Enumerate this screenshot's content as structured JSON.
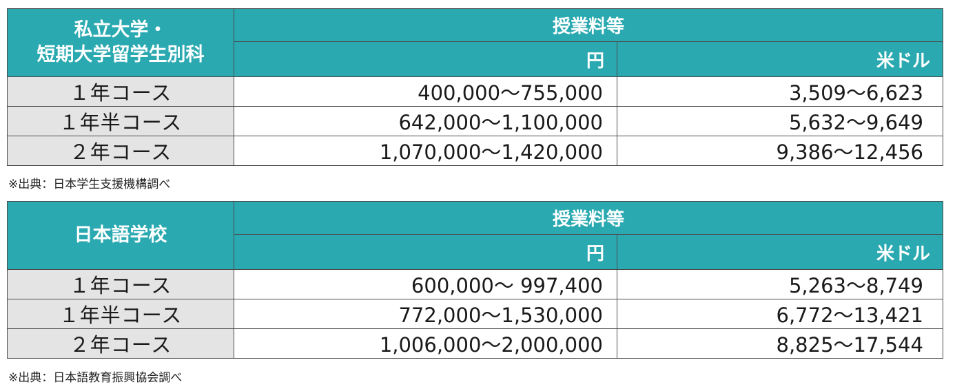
{
  "tables": [
    {
      "name_line1": "私立大学・",
      "name_line2": "短期大学留学生別科",
      "group_header": "授業料等",
      "unit_yen": "円",
      "unit_usd": "米ドル",
      "rows": [
        {
          "course": "１年コース",
          "yen": "400,000～755,000",
          "usd": "3,509～6,623"
        },
        {
          "course": "１年半コース",
          "yen": "642,000～1,100,000",
          "usd": "5,632～9,649"
        },
        {
          "course": "２年コース",
          "yen": "1,070,000～1,420,000",
          "usd": "9,386～12,456"
        }
      ],
      "note": "※出典：日本学生支援機構調べ"
    },
    {
      "name_line1": "日本語学校",
      "group_header": "授業料等",
      "unit_yen": "円",
      "unit_usd": "米ドル",
      "rows": [
        {
          "course": "１年コース",
          "yen": "600,000～ 997,400",
          "usd": "5,263～8,749"
        },
        {
          "course": "１年半コース",
          "yen": "772,000～1,530,000",
          "usd": "6,772～13,421"
        },
        {
          "course": "２年コース",
          "yen": "1,006,000～2,000,000",
          "usd": "8,825～17,544"
        }
      ],
      "note": "※出典：日本語教育振興協会調べ"
    }
  ]
}
